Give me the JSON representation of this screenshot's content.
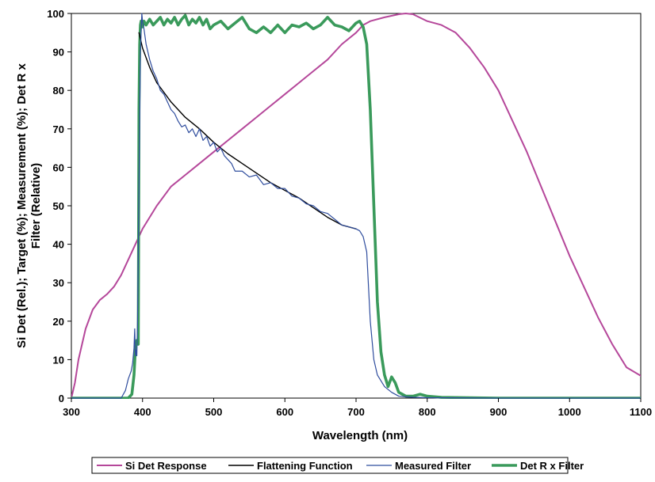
{
  "chart_data": {
    "type": "line",
    "title": "",
    "xlabel": "Wavelength (nm)",
    "ylabel_lines": [
      "Si Det (Rel.); Target (%); Measurement (%); Det R x",
      "Filter (Relative)"
    ],
    "xlim": [
      300,
      1100
    ],
    "ylim": [
      0,
      100
    ],
    "x_ticks": [
      300,
      400,
      500,
      600,
      700,
      800,
      900,
      1000,
      1100
    ],
    "y_ticks": [
      0,
      10,
      20,
      30,
      40,
      50,
      60,
      70,
      80,
      90,
      100
    ],
    "x_tick_labels": [
      "300",
      "400",
      "500",
      "600",
      "700",
      "800",
      "900",
      "1000",
      "1100"
    ],
    "y_tick_labels": [
      "0",
      "10",
      "20",
      "30",
      "40",
      "50",
      "60",
      "70",
      "80",
      "90",
      "100"
    ],
    "grid": false,
    "legend_position": "bottom",
    "series": [
      {
        "name": "Si Det Response",
        "color": "#b5479a",
        "x": [
          300,
          305,
          310,
          320,
          330,
          340,
          350,
          360,
          370,
          380,
          390,
          400,
          420,
          440,
          460,
          480,
          500,
          520,
          540,
          560,
          580,
          600,
          620,
          640,
          660,
          680,
          700,
          710,
          720,
          740,
          760,
          770,
          780,
          800,
          820,
          840,
          860,
          880,
          900,
          920,
          940,
          960,
          980,
          1000,
          1020,
          1040,
          1060,
          1080,
          1100
        ],
        "y": [
          0,
          4,
          10,
          18,
          23,
          25.5,
          27,
          29,
          32,
          36,
          40,
          44,
          50,
          55,
          58,
          61,
          64,
          67,
          70,
          73,
          76,
          79,
          82,
          85,
          88,
          92,
          95,
          97,
          98,
          99,
          99.8,
          100,
          99.8,
          98,
          97,
          95,
          91,
          86,
          80,
          72,
          64,
          55,
          46,
          37,
          29,
          21,
          14,
          8,
          5.8
        ]
      },
      {
        "name": "Flattening Function",
        "color": "#000000",
        "x": [
          395,
          400,
          410,
          420,
          440,
          460,
          480,
          500,
          520,
          540,
          560,
          580,
          600,
          620,
          640,
          660,
          680,
          700
        ],
        "y": [
          95,
          91,
          86,
          82,
          77,
          73,
          70,
          66.5,
          63.5,
          61,
          58.5,
          56,
          54,
          52,
          49.5,
          47,
          45,
          44
        ]
      },
      {
        "name": "Measured Filter",
        "color": "#2f4d9e",
        "x": [
          300,
          370,
          376,
          380,
          384,
          386,
          388,
          389,
          390,
          391,
          392,
          393,
          395,
          397,
          399,
          400,
          402,
          405,
          410,
          415,
          420,
          425,
          430,
          435,
          440,
          445,
          450,
          455,
          460,
          465,
          470,
          475,
          480,
          485,
          490,
          495,
          500,
          505,
          510,
          515,
          520,
          525,
          530,
          540,
          550,
          560,
          570,
          580,
          590,
          600,
          610,
          620,
          630,
          640,
          650,
          660,
          670,
          680,
          690,
          700,
          705,
          710,
          715,
          720,
          725,
          730,
          740,
          750,
          760,
          780,
          800,
          900,
          1000,
          1100
        ],
        "y": [
          0,
          0,
          2,
          5,
          7,
          9,
          13,
          18,
          11,
          12.5,
          11,
          20,
          55,
          90,
          100,
          98,
          96,
          92,
          88,
          85,
          83,
          80,
          79,
          77,
          75,
          74,
          72,
          70.5,
          71,
          69,
          70,
          68,
          70,
          67,
          68,
          65.5,
          66.5,
          64,
          65,
          63,
          62,
          61,
          59,
          59,
          57.5,
          58,
          55.5,
          56,
          54.5,
          54.5,
          52.5,
          52,
          50.5,
          50,
          48.5,
          48,
          46.5,
          45,
          44.5,
          44,
          43.5,
          42,
          38,
          20,
          10,
          6,
          3,
          1.5,
          0.5,
          0.2,
          0.1,
          0,
          0,
          0
        ]
      },
      {
        "name": "Det R x Filter",
        "color": "#3a9a5b",
        "x": [
          300,
          375,
          380,
          385,
          388,
          390,
          392,
          394,
          395,
          396,
          397,
          398,
          400,
          402,
          405,
          410,
          415,
          420,
          425,
          430,
          435,
          440,
          445,
          450,
          455,
          460,
          465,
          470,
          475,
          480,
          485,
          490,
          495,
          500,
          510,
          520,
          530,
          540,
          550,
          560,
          570,
          580,
          590,
          600,
          610,
          620,
          630,
          640,
          650,
          660,
          670,
          680,
          690,
          700,
          705,
          710,
          715,
          720,
          725,
          730,
          735,
          740,
          745,
          750,
          755,
          760,
          765,
          770,
          780,
          790,
          800,
          820,
          900,
          1000,
          1100
        ],
        "y": [
          0,
          0,
          0,
          1,
          6,
          13,
          15,
          14,
          75,
          92,
          97,
          98,
          96.5,
          98,
          97,
          98.5,
          97,
          98,
          99,
          97,
          98.5,
          97.5,
          99,
          97,
          98.5,
          99.5,
          97,
          98.5,
          97.5,
          99,
          97,
          98.5,
          96,
          97,
          98,
          96,
          97.5,
          99,
          96,
          95,
          96.5,
          95,
          97,
          95,
          97,
          96.5,
          97.5,
          96,
          97,
          99,
          97,
          96.5,
          95.5,
          97.5,
          98,
          96.5,
          92,
          75,
          50,
          25,
          12,
          6,
          3,
          5.5,
          4,
          1.5,
          1,
          0.5,
          0.5,
          1,
          0.5,
          0.2,
          0,
          0,
          0
        ]
      }
    ]
  }
}
